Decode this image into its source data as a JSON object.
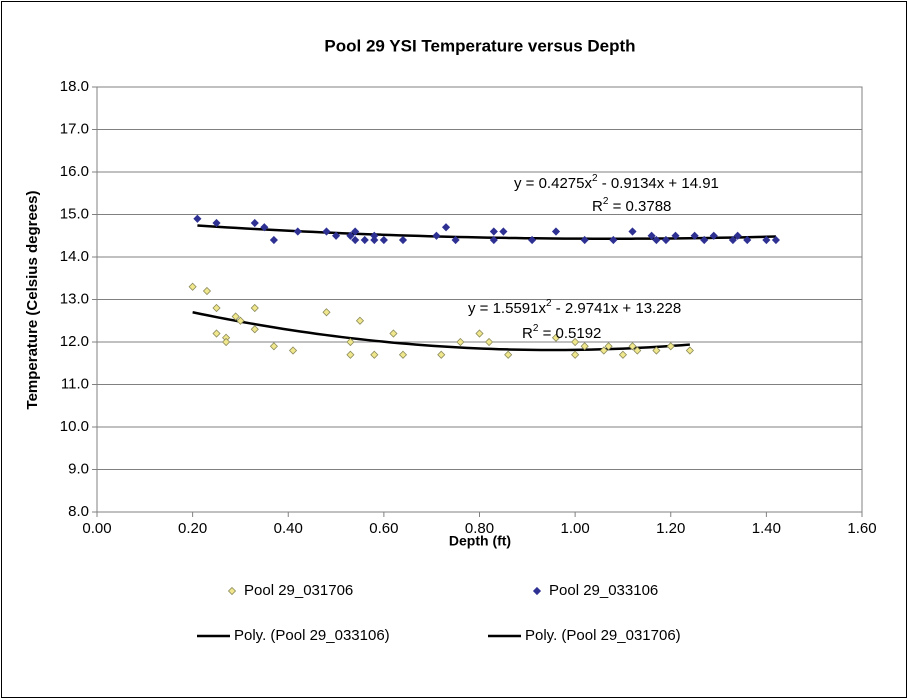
{
  "chart_data": {
    "type": "scatter",
    "title": "Pool 29 YSI Temperature versus Depth",
    "x_label": "Depth (ft)",
    "y_label": "Temperature (Celsius degrees)",
    "xlim": [
      0,
      1.6
    ],
    "ylim": [
      8,
      18
    ],
    "xticks": [
      {
        "value": 0,
        "label": "0.00"
      },
      {
        "value": 0.2,
        "label": "0.20"
      },
      {
        "value": 0.4,
        "label": "0.40"
      },
      {
        "value": 0.6,
        "label": "0.60"
      },
      {
        "value": 0.8,
        "label": "0.80"
      },
      {
        "value": 1,
        "label": "1.00"
      },
      {
        "value": 1.2,
        "label": "1.20"
      },
      {
        "value": 1.4,
        "label": "1.40"
      },
      {
        "value": 1.6,
        "label": "1.60"
      }
    ],
    "yticks": [
      {
        "value": 8,
        "label": "8.0"
      },
      {
        "value": 9,
        "label": "9.0"
      },
      {
        "value": 10,
        "label": "10.0"
      },
      {
        "value": 11,
        "label": "11.0"
      },
      {
        "value": 12,
        "label": "12.0"
      },
      {
        "value": 13,
        "label": "13.0"
      },
      {
        "value": 14,
        "label": "14.0"
      },
      {
        "value": 15,
        "label": "15.0"
      },
      {
        "value": 16,
        "label": "16.0"
      },
      {
        "value": 17,
        "label": "17.0"
      },
      {
        "value": 18,
        "label": "18.0"
      }
    ],
    "grid": true,
    "legend": "bottom",
    "series": [
      {
        "name": "Pool 29_031706",
        "color": "#f0e68c",
        "x": [
          0.2,
          0.23,
          0.25,
          0.25,
          0.27,
          0.27,
          0.29,
          0.3,
          0.33,
          0.33,
          0.37,
          0.41,
          0.48,
          0.53,
          0.53,
          0.55,
          0.58,
          0.62,
          0.64,
          0.72,
          0.76,
          0.8,
          0.82,
          0.86,
          0.96,
          1.0,
          1.0,
          1.02,
          1.06,
          1.07,
          1.1,
          1.12,
          1.13,
          1.17,
          1.2,
          1.24
        ],
        "values": [
          13.3,
          13.2,
          12.8,
          12.2,
          12.1,
          12.0,
          12.6,
          12.5,
          12.8,
          12.3,
          11.9,
          11.8,
          12.7,
          12.0,
          11.7,
          12.5,
          11.7,
          12.2,
          11.7,
          11.7,
          12.0,
          12.2,
          12.0,
          11.7,
          12.1,
          12.0,
          11.7,
          11.9,
          11.8,
          11.9,
          11.7,
          11.9,
          11.8,
          11.8,
          11.9,
          11.8
        ]
      },
      {
        "name": "Pool 29_033106",
        "color": "#2e3192",
        "x": [
          0.21,
          0.25,
          0.33,
          0.35,
          0.37,
          0.42,
          0.48,
          0.5,
          0.53,
          0.54,
          0.54,
          0.56,
          0.58,
          0.58,
          0.6,
          0.64,
          0.71,
          0.73,
          0.75,
          0.83,
          0.83,
          0.85,
          0.91,
          0.96,
          1.02,
          1.08,
          1.12,
          1.16,
          1.17,
          1.19,
          1.21,
          1.25,
          1.27,
          1.29,
          1.33,
          1.34,
          1.36,
          1.4,
          1.42
        ],
        "values": [
          14.9,
          14.8,
          14.8,
          14.7,
          14.4,
          14.6,
          14.6,
          14.5,
          14.5,
          14.6,
          14.4,
          14.4,
          14.5,
          14.4,
          14.4,
          14.4,
          14.5,
          14.7,
          14.4,
          14.6,
          14.4,
          14.6,
          14.4,
          14.6,
          14.4,
          14.4,
          14.6,
          14.5,
          14.4,
          14.4,
          14.5,
          14.5,
          14.4,
          14.5,
          14.4,
          14.5,
          14.4,
          14.4,
          14.4
        ]
      }
    ],
    "trendlines": [
      {
        "name": "Poly. (Pool 29_033106)",
        "series": 1,
        "color": "#000000",
        "equation": [
          "y = 0.4275x",
          "2",
          " - 0.9134x + 14.91"
        ],
        "r2": [
          "R",
          "2",
          " = 0.3788"
        ]
      },
      {
        "name": "Poly. (Pool 29_031706)",
        "series": 0,
        "color": "#000000",
        "equation": [
          "y = 1.5591x",
          "2",
          " - 2.9741x + 13.228"
        ],
        "r2": [
          "R",
          "2",
          " = 0.5192"
        ]
      }
    ]
  }
}
